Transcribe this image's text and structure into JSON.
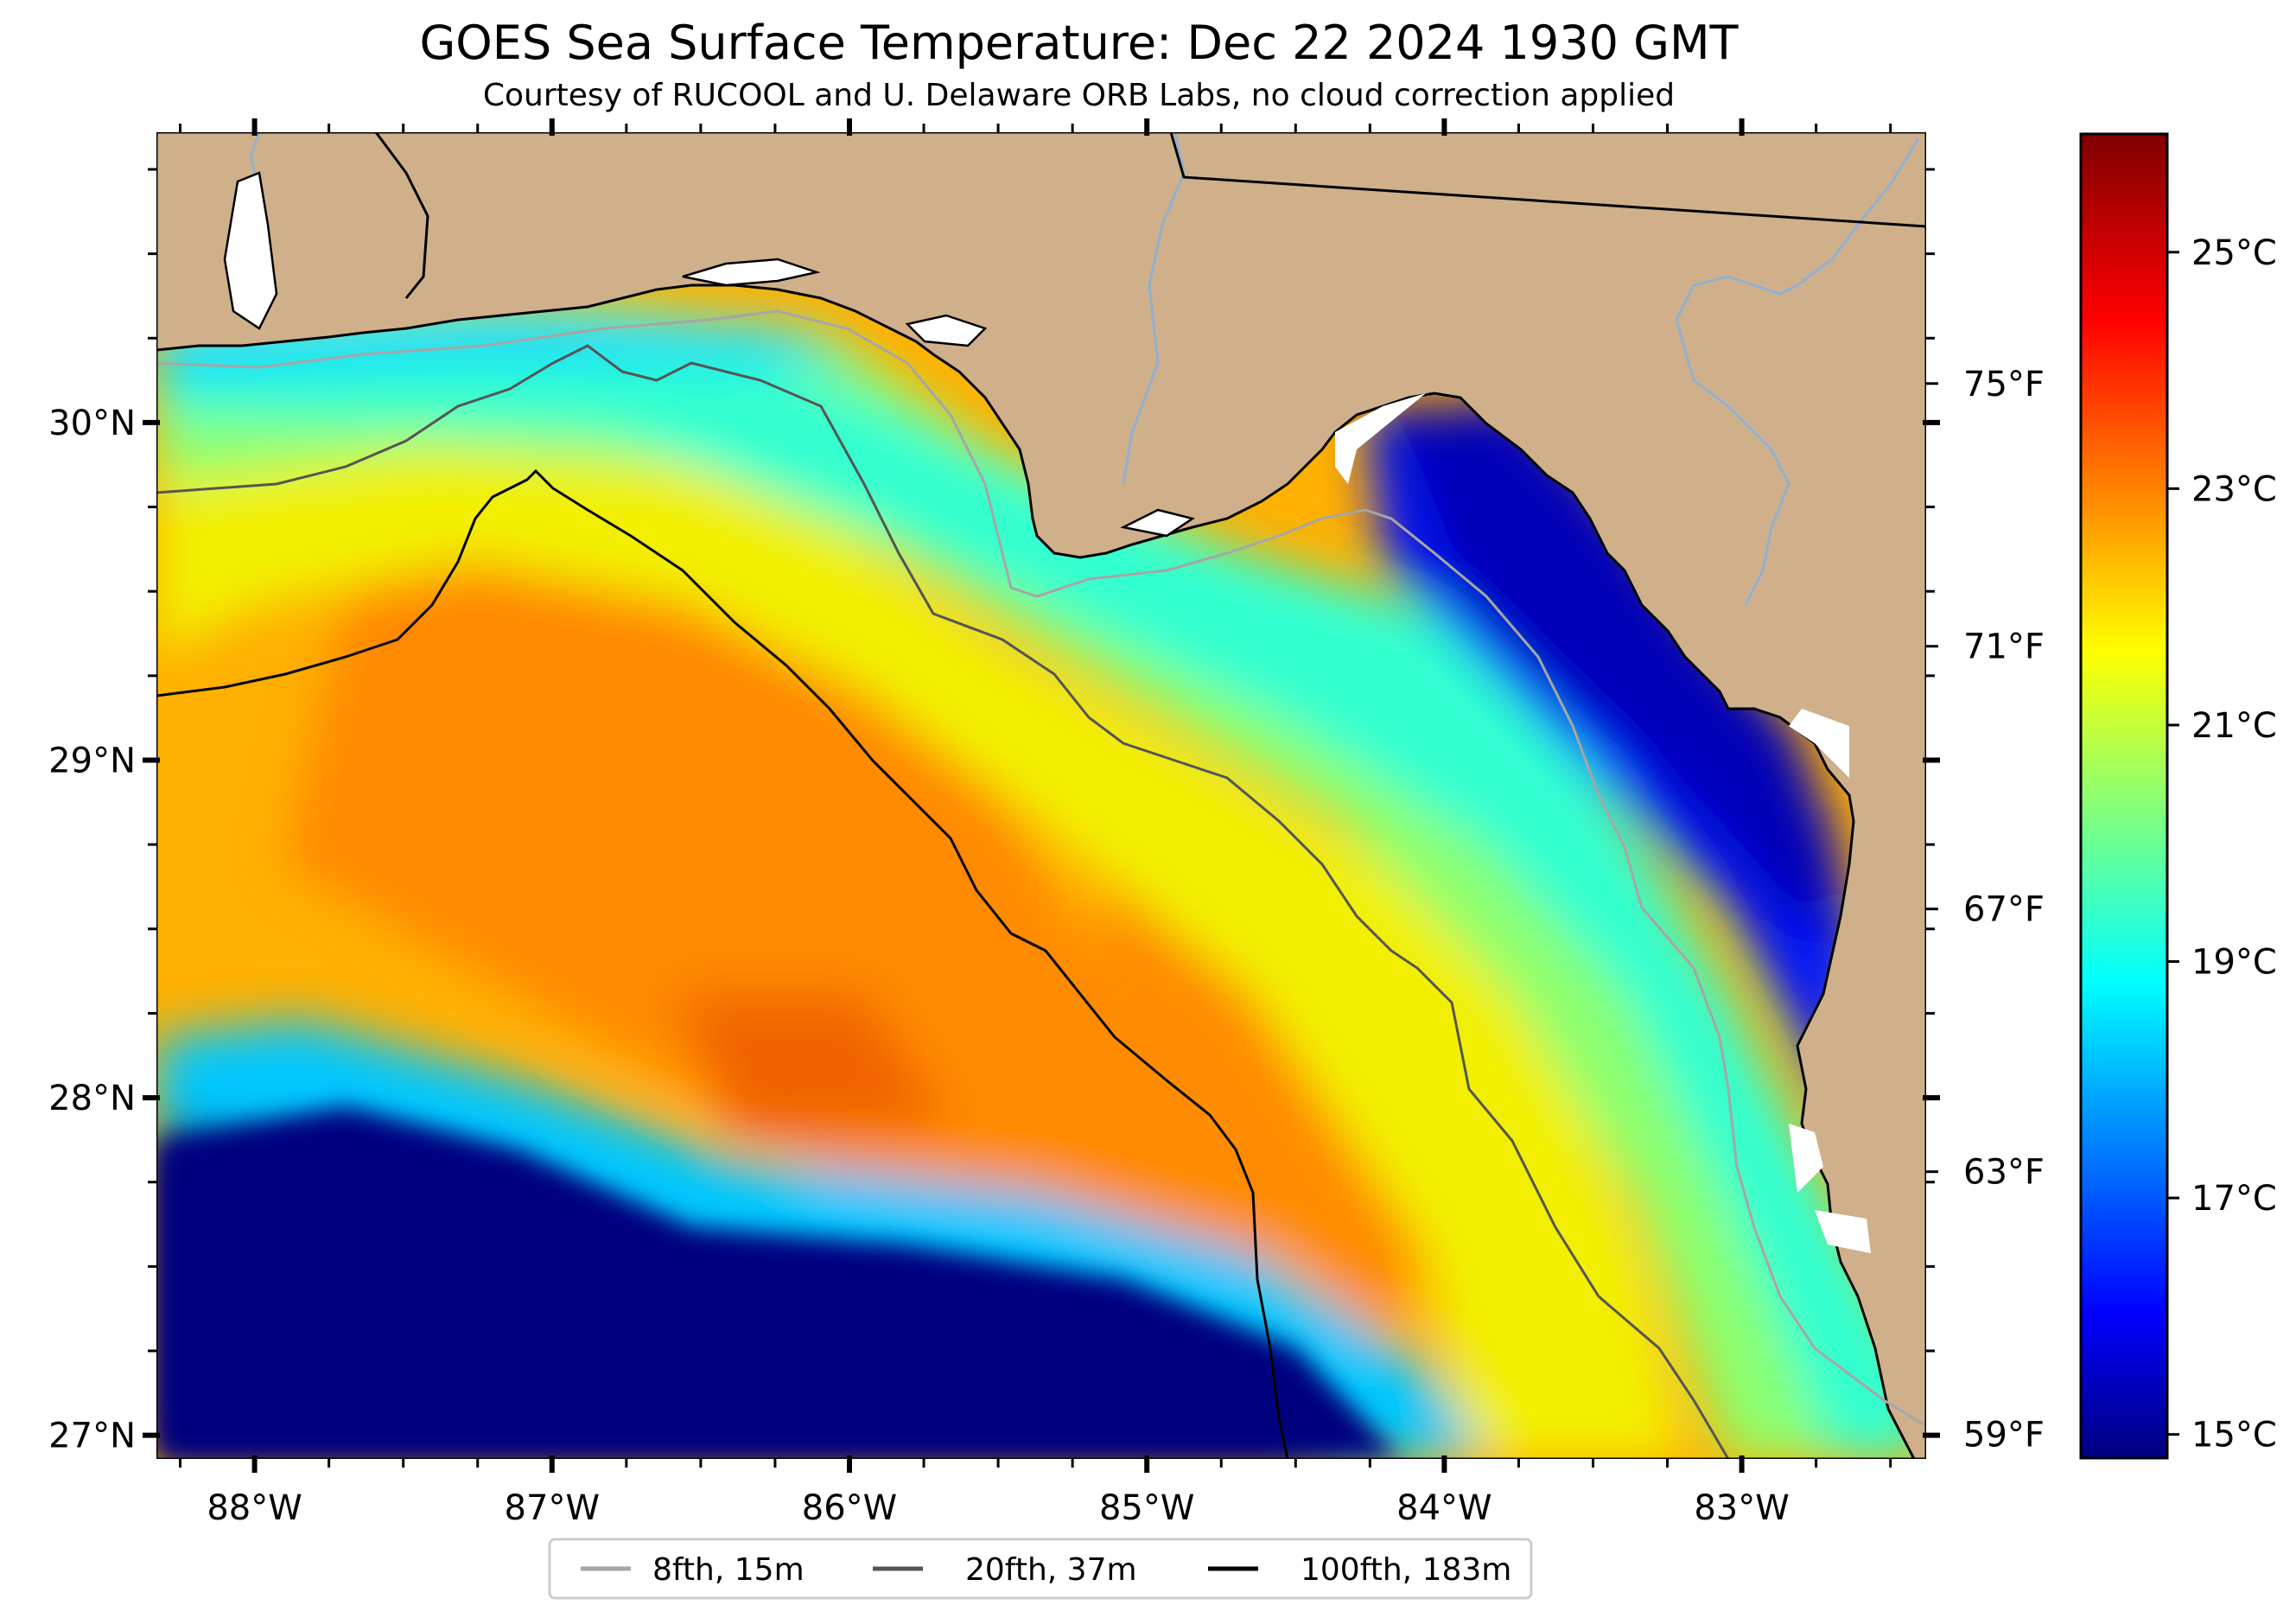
{
  "title": "GOES Sea Surface Temperature: Dec 22 2024 1930 GMT",
  "subtitle": "Courtesy of RUCOOL and U. Delaware ORB Labs, no cloud correction applied",
  "map": {
    "lon_range": [
      -88.33,
      -82.38
    ],
    "lat_range": [
      26.93,
      30.86
    ],
    "lon_ticks": [
      {
        "value": -88,
        "label": "88°W"
      },
      {
        "value": -87,
        "label": "87°W"
      },
      {
        "value": -86,
        "label": "86°W"
      },
      {
        "value": -85,
        "label": "85°W"
      },
      {
        "value": -84,
        "label": "84°W"
      },
      {
        "value": -83,
        "label": "83°W"
      }
    ],
    "lat_ticks": [
      {
        "value": 30,
        "label": "30°N"
      },
      {
        "value": 29,
        "label": "29°N"
      },
      {
        "value": 28,
        "label": "28°N"
      },
      {
        "value": 27,
        "label": "27°N"
      }
    ],
    "fahrenheit_ticks": [
      {
        "value": 75,
        "label": "75°F"
      },
      {
        "value": 71,
        "label": "71°F"
      },
      {
        "value": 67,
        "label": "67°F"
      },
      {
        "value": 63,
        "label": "63°F"
      },
      {
        "value": 59,
        "label": "59°F"
      }
    ],
    "colors": {
      "land": "#cfb08b",
      "cloud_mask": "#ffffff",
      "coastline": "#000000",
      "river": "#8fb0cf",
      "contour_8fth": "#a6a6a6",
      "contour_20fth": "#555555",
      "contour_100fth": "#000000"
    }
  },
  "colorbar": {
    "cmap": "jet",
    "range_c": [
      14.8,
      26.0
    ],
    "ticks": [
      {
        "value": 25,
        "label": "25°C"
      },
      {
        "value": 23,
        "label": "23°C"
      },
      {
        "value": 21,
        "label": "21°C"
      },
      {
        "value": 19,
        "label": "19°C"
      },
      {
        "value": 17,
        "label": "17°C"
      },
      {
        "value": 15,
        "label": "15°C"
      }
    ]
  },
  "legend": {
    "placement": "bottom-center",
    "items": [
      {
        "label": "8fth, 15m",
        "color": "#a6a6a6"
      },
      {
        "label": "20fth, 37m",
        "color": "#555555"
      },
      {
        "label": "100fth, 183m",
        "color": "#000000"
      }
    ]
  }
}
